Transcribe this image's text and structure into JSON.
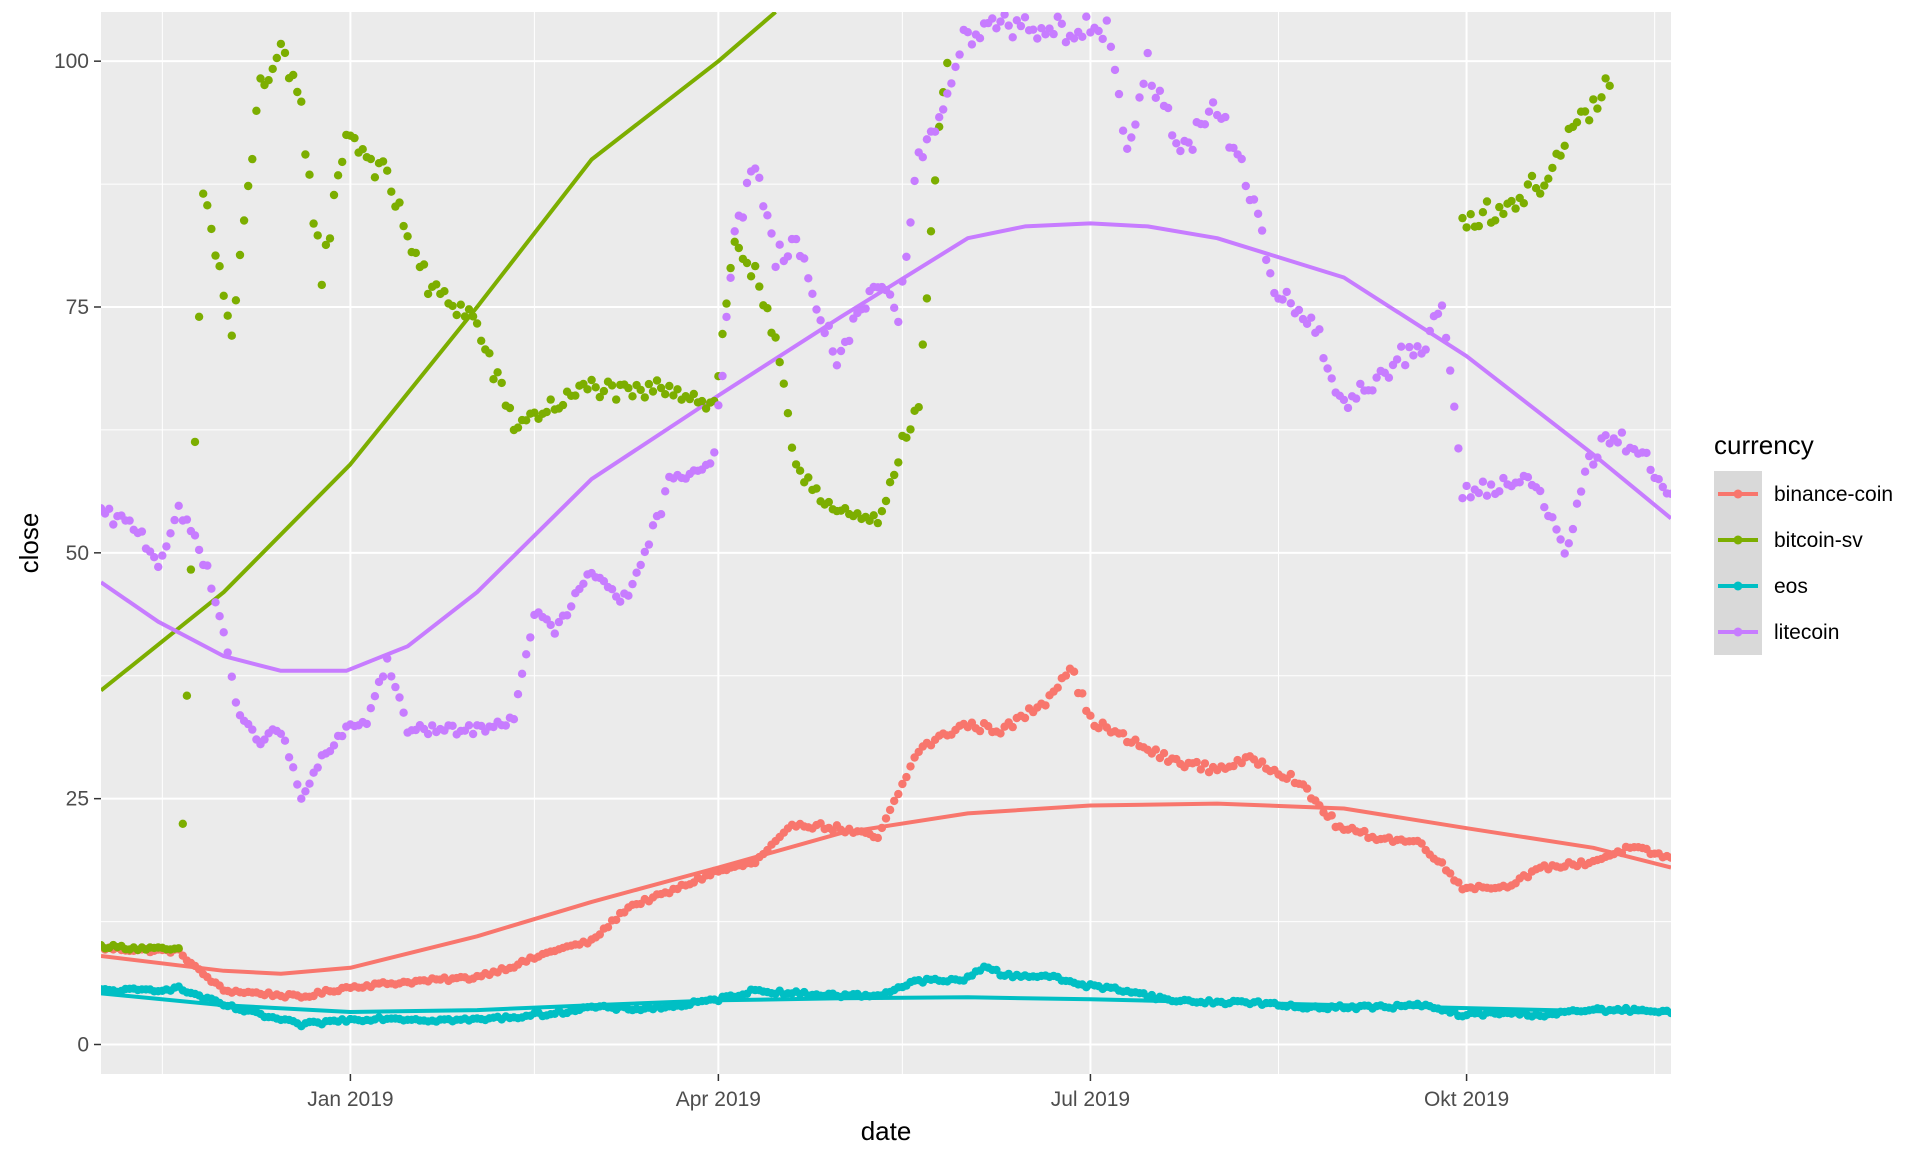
{
  "chart_data": {
    "type": "scatter",
    "xlabel": "date",
    "ylabel": "close",
    "xlim": [
      "2018-11-01",
      "2019-11-20"
    ],
    "ylim": [
      -3,
      105
    ],
    "x_ticks": [
      {
        "date": "2019-01-01",
        "label": "Jan 2019"
      },
      {
        "date": "2019-04-01",
        "label": "Apr 2019"
      },
      {
        "date": "2019-07-01",
        "label": "Jul 2019"
      },
      {
        "date": "2019-10-01",
        "label": "Okt 2019"
      }
    ],
    "x_minor_ticks": [
      "2018-11-16",
      "2019-02-15",
      "2019-05-16",
      "2019-08-16",
      "2019-11-16"
    ],
    "y_ticks": [
      0,
      25,
      50,
      75,
      100
    ],
    "y_minor_ticks": [
      12.5,
      37.5,
      62.5,
      87.5
    ],
    "grid": true,
    "legend": {
      "title": "currency",
      "placement": "right"
    },
    "series": [
      {
        "name": "binance-coin",
        "color": "#F8766D",
        "points": [
          [
            "2018-11-01",
            9.8
          ],
          [
            "2018-11-10",
            9.6
          ],
          [
            "2018-11-20",
            9.5
          ],
          [
            "2018-11-25",
            7.5
          ],
          [
            "2018-12-01",
            5.5
          ],
          [
            "2018-12-10",
            5.2
          ],
          [
            "2018-12-20",
            4.8
          ],
          [
            "2018-12-31",
            5.8
          ],
          [
            "2019-01-10",
            6.2
          ],
          [
            "2019-01-20",
            6.5
          ],
          [
            "2019-01-31",
            6.8
          ],
          [
            "2019-02-10",
            8.0
          ],
          [
            "2019-02-20",
            9.6
          ],
          [
            "2019-03-01",
            10.5
          ],
          [
            "2019-03-10",
            14.0
          ],
          [
            "2019-03-20",
            15.5
          ],
          [
            "2019-03-31",
            17.5
          ],
          [
            "2019-04-10",
            18.5
          ],
          [
            "2019-04-20",
            22.5
          ],
          [
            "2019-04-30",
            22.0
          ],
          [
            "2019-05-10",
            21.0
          ],
          [
            "2019-05-20",
            30.0
          ],
          [
            "2019-05-31",
            32.5
          ],
          [
            "2019-06-10",
            32.0
          ],
          [
            "2019-06-20",
            35.0
          ],
          [
            "2019-06-26",
            38.5
          ],
          [
            "2019-07-01",
            33.0
          ],
          [
            "2019-07-10",
            31.0
          ],
          [
            "2019-07-20",
            29.0
          ],
          [
            "2019-07-31",
            28.0
          ],
          [
            "2019-08-10",
            29.0
          ],
          [
            "2019-08-20",
            27.0
          ],
          [
            "2019-08-31",
            22.0
          ],
          [
            "2019-09-10",
            21.0
          ],
          [
            "2019-09-20",
            20.5
          ],
          [
            "2019-09-30",
            16.0
          ],
          [
            "2019-10-10",
            16.0
          ],
          [
            "2019-10-20",
            18.0
          ],
          [
            "2019-10-31",
            18.5
          ],
          [
            "2019-11-10",
            20.0
          ],
          [
            "2019-11-20",
            19.0
          ]
        ],
        "smooth": [
          [
            "2018-11-01",
            9.0
          ],
          [
            "2018-12-01",
            7.5
          ],
          [
            "2018-12-15",
            7.2
          ],
          [
            "2019-01-01",
            7.8
          ],
          [
            "2019-02-01",
            11.0
          ],
          [
            "2019-03-01",
            14.5
          ],
          [
            "2019-04-01",
            18.0
          ],
          [
            "2019-05-01",
            21.5
          ],
          [
            "2019-06-01",
            23.5
          ],
          [
            "2019-07-01",
            24.3
          ],
          [
            "2019-08-01",
            24.5
          ],
          [
            "2019-09-01",
            24.0
          ],
          [
            "2019-10-01",
            22.0
          ],
          [
            "2019-11-01",
            20.0
          ],
          [
            "2019-11-20",
            18.0
          ]
        ]
      },
      {
        "name": "bitcoin-sv",
        "color": "#7CAE00",
        "points": [
          [
            "2018-11-01",
            10.0
          ],
          [
            "2018-11-10",
            9.8
          ],
          [
            "2018-11-20",
            9.6
          ],
          [
            "2018-11-26",
            87.0
          ],
          [
            "2018-12-03",
            72.0
          ],
          [
            "2018-12-10",
            98.0
          ],
          [
            "2018-12-15",
            100.5
          ],
          [
            "2018-12-20",
            95.0
          ],
          [
            "2018-12-25",
            78.0
          ],
          [
            "2018-12-31",
            93.0
          ],
          [
            "2019-01-10",
            88.0
          ],
          [
            "2019-01-20",
            77.0
          ],
          [
            "2019-01-31",
            74.0
          ],
          [
            "2019-02-10",
            63.0
          ],
          [
            "2019-02-20",
            65.0
          ],
          [
            "2019-03-01",
            67.0
          ],
          [
            "2019-03-10",
            66.0
          ],
          [
            "2019-03-20",
            67.0
          ],
          [
            "2019-03-31",
            65.0
          ],
          [
            "2019-04-05",
            82.0
          ],
          [
            "2019-04-10",
            78.0
          ],
          [
            "2019-04-15",
            71.0
          ],
          [
            "2019-04-20",
            59.0
          ],
          [
            "2019-04-30",
            54.0
          ],
          [
            "2019-05-10",
            53.0
          ],
          [
            "2019-05-15",
            60.0
          ],
          [
            "2019-05-20",
            65.0
          ],
          [
            "2019-05-25",
            93.0
          ],
          [
            "2019-05-28",
            104.0
          ],
          [
            "2019-09-30",
            84.0
          ],
          [
            "2019-10-10",
            85.0
          ],
          [
            "2019-10-20",
            88.0
          ],
          [
            "2019-10-31",
            95.0
          ],
          [
            "2019-11-05",
            97.5
          ]
        ],
        "smooth": [
          [
            "2018-11-01",
            36.0
          ],
          [
            "2018-12-01",
            46.0
          ],
          [
            "2019-01-01",
            59.0
          ],
          [
            "2019-02-01",
            75.0
          ],
          [
            "2019-03-01",
            90.0
          ],
          [
            "2019-04-01",
            100.0
          ],
          [
            "2019-04-15",
            105.0
          ]
        ]
      },
      {
        "name": "eos",
        "color": "#00BFC4",
        "points": [
          [
            "2018-11-01",
            5.5
          ],
          [
            "2018-11-10",
            5.5
          ],
          [
            "2018-11-20",
            5.7
          ],
          [
            "2018-12-01",
            4.0
          ],
          [
            "2018-12-10",
            3.0
          ],
          [
            "2018-12-20",
            2.0
          ],
          [
            "2018-12-31",
            2.5
          ],
          [
            "2019-01-10",
            2.7
          ],
          [
            "2019-01-20",
            2.5
          ],
          [
            "2019-01-31",
            2.5
          ],
          [
            "2019-02-10",
            2.8
          ],
          [
            "2019-02-20",
            3.2
          ],
          [
            "2019-03-01",
            3.8
          ],
          [
            "2019-03-10",
            3.6
          ],
          [
            "2019-03-20",
            3.8
          ],
          [
            "2019-03-31",
            4.5
          ],
          [
            "2019-04-10",
            5.5
          ],
          [
            "2019-04-20",
            5.2
          ],
          [
            "2019-04-30",
            5.0
          ],
          [
            "2019-05-10",
            5.0
          ],
          [
            "2019-05-20",
            6.5
          ],
          [
            "2019-05-31",
            6.5
          ],
          [
            "2019-06-05",
            8.0
          ],
          [
            "2019-06-10",
            7.0
          ],
          [
            "2019-06-20",
            7.0
          ],
          [
            "2019-06-30",
            6.0
          ],
          [
            "2019-07-10",
            5.5
          ],
          [
            "2019-07-20",
            4.5
          ],
          [
            "2019-07-31",
            4.3
          ],
          [
            "2019-08-10",
            4.3
          ],
          [
            "2019-08-20",
            3.8
          ],
          [
            "2019-08-31",
            3.8
          ],
          [
            "2019-09-10",
            3.8
          ],
          [
            "2019-09-20",
            4.0
          ],
          [
            "2019-09-30",
            3.0
          ],
          [
            "2019-10-10",
            3.2
          ],
          [
            "2019-10-20",
            3.0
          ],
          [
            "2019-10-31",
            3.5
          ],
          [
            "2019-11-10",
            3.5
          ],
          [
            "2019-11-20",
            3.2
          ]
        ],
        "smooth": [
          [
            "2018-11-01",
            5.2
          ],
          [
            "2018-12-01",
            4.0
          ],
          [
            "2019-01-01",
            3.3
          ],
          [
            "2019-02-01",
            3.5
          ],
          [
            "2019-03-01",
            4.0
          ],
          [
            "2019-04-01",
            4.5
          ],
          [
            "2019-05-01",
            4.7
          ],
          [
            "2019-06-01",
            4.8
          ],
          [
            "2019-07-01",
            4.6
          ],
          [
            "2019-08-01",
            4.3
          ],
          [
            "2019-09-01",
            4.0
          ],
          [
            "2019-10-01",
            3.7
          ],
          [
            "2019-11-01",
            3.4
          ],
          [
            "2019-11-20",
            3.2
          ]
        ]
      },
      {
        "name": "litecoin",
        "color": "#C77CFF",
        "points": [
          [
            "2018-11-01",
            54.0
          ],
          [
            "2018-11-10",
            52.5
          ],
          [
            "2018-11-15",
            49.0
          ],
          [
            "2018-11-20",
            54.0
          ],
          [
            "2018-11-25",
            51.0
          ],
          [
            "2018-12-01",
            42.0
          ],
          [
            "2018-12-05",
            33.0
          ],
          [
            "2018-12-10",
            31.0
          ],
          [
            "2018-12-15",
            32.0
          ],
          [
            "2018-12-20",
            25.0
          ],
          [
            "2018-12-25",
            29.0
          ],
          [
            "2018-12-31",
            32.0
          ],
          [
            "2019-01-05",
            33.0
          ],
          [
            "2019-01-10",
            39.0
          ],
          [
            "2019-01-15",
            32.0
          ],
          [
            "2019-01-20",
            32.0
          ],
          [
            "2019-01-31",
            32.0
          ],
          [
            "2019-02-10",
            33.0
          ],
          [
            "2019-02-15",
            44.0
          ],
          [
            "2019-02-20",
            42.0
          ],
          [
            "2019-03-01",
            48.0
          ],
          [
            "2019-03-10",
            45.0
          ],
          [
            "2019-03-20",
            57.0
          ],
          [
            "2019-03-31",
            60.0
          ],
          [
            "2019-04-05",
            82.0
          ],
          [
            "2019-04-10",
            90.0
          ],
          [
            "2019-04-15",
            80.0
          ],
          [
            "2019-04-20",
            82.0
          ],
          [
            "2019-04-25",
            75.0
          ],
          [
            "2019-04-30",
            70.0
          ],
          [
            "2019-05-10",
            77.0
          ],
          [
            "2019-05-15",
            74.0
          ],
          [
            "2019-05-20",
            90.0
          ],
          [
            "2019-05-25",
            95.0
          ],
          [
            "2019-06-01",
            103.0
          ],
          [
            "2019-06-05",
            104.0
          ],
          [
            "2019-07-05",
            103.0
          ],
          [
            "2019-07-10",
            90.0
          ],
          [
            "2019-07-15",
            100.0
          ],
          [
            "2019-07-20",
            94.0
          ],
          [
            "2019-07-25",
            91.0
          ],
          [
            "2019-07-31",
            96.0
          ],
          [
            "2019-08-05",
            91.0
          ],
          [
            "2019-08-10",
            86.0
          ],
          [
            "2019-08-15",
            76.0
          ],
          [
            "2019-08-20",
            75.0
          ],
          [
            "2019-08-25",
            73.0
          ],
          [
            "2019-08-31",
            65.0
          ],
          [
            "2019-09-10",
            68.0
          ],
          [
            "2019-09-15",
            70.0
          ],
          [
            "2019-09-20",
            70.0
          ],
          [
            "2019-09-25",
            76.0
          ],
          [
            "2019-09-30",
            56.0
          ],
          [
            "2019-10-10",
            57.0
          ],
          [
            "2019-10-15",
            58.0
          ],
          [
            "2019-10-20",
            55.0
          ],
          [
            "2019-10-25",
            50.0
          ],
          [
            "2019-10-31",
            59.0
          ],
          [
            "2019-11-05",
            62.0
          ],
          [
            "2019-11-10",
            61.0
          ],
          [
            "2019-11-15",
            59.0
          ],
          [
            "2019-11-20",
            56.0
          ]
        ],
        "smooth": [
          [
            "2018-11-01",
            47.0
          ],
          [
            "2018-11-15",
            43.0
          ],
          [
            "2018-12-01",
            39.5
          ],
          [
            "2018-12-15",
            38.0
          ],
          [
            "2018-12-31",
            38.0
          ],
          [
            "2019-01-15",
            40.5
          ],
          [
            "2019-02-01",
            46.0
          ],
          [
            "2019-03-01",
            57.5
          ],
          [
            "2019-04-01",
            66.0
          ],
          [
            "2019-05-01",
            74.0
          ],
          [
            "2019-06-01",
            82.0
          ],
          [
            "2019-06-15",
            83.2
          ],
          [
            "2019-07-01",
            83.5
          ],
          [
            "2019-07-15",
            83.2
          ],
          [
            "2019-08-01",
            82.0
          ],
          [
            "2019-09-01",
            78.0
          ],
          [
            "2019-10-01",
            70.0
          ],
          [
            "2019-11-01",
            60.0
          ],
          [
            "2019-11-20",
            53.5
          ]
        ]
      }
    ]
  }
}
